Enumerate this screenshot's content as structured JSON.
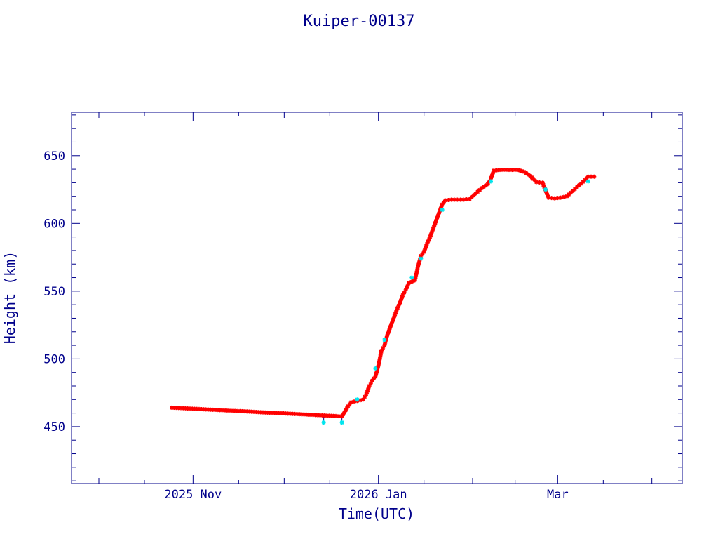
{
  "chart_data": {
    "type": "scatter",
    "title": "Kuiper-00137",
    "xlabel": "Time(UTC)",
    "ylabel": "Height (km)",
    "xlim": [
      "2025-09-22",
      "2026-04-11"
    ],
    "ylim": [
      408,
      682
    ],
    "x_tick_labels": [
      {
        "date": "2025-11-01",
        "label": "2025 Nov"
      },
      {
        "date": "2026-01-01",
        "label": "2026 Jan"
      },
      {
        "date": "2026-03-01",
        "label": "Mar"
      }
    ],
    "y_ticks": [
      450,
      500,
      550,
      600,
      650
    ],
    "grid": false,
    "colors": {
      "axis": "#00008b",
      "primary_marker": "#ff0000",
      "secondary_marker": "#00e5ee",
      "connector_line": "#00008b"
    },
    "series": [
      {
        "marker": "star",
        "color": "#ff0000",
        "points": [
          [
            "2025-10-25",
            464.0
          ],
          [
            "2025-10-28",
            463.7
          ],
          [
            "2025-10-31",
            463.3
          ],
          [
            "2025-11-03",
            463.0
          ],
          [
            "2025-11-06",
            462.6
          ],
          [
            "2025-11-09",
            462.3
          ],
          [
            "2025-11-12",
            461.9
          ],
          [
            "2025-11-15",
            461.6
          ],
          [
            "2025-11-18",
            461.3
          ],
          [
            "2025-11-21",
            460.9
          ],
          [
            "2025-11-24",
            460.5
          ],
          [
            "2025-11-27",
            460.2
          ],
          [
            "2025-11-30",
            459.9
          ],
          [
            "2025-12-03",
            459.5
          ],
          [
            "2025-12-06",
            459.2
          ],
          [
            "2025-12-09",
            458.8
          ],
          [
            "2025-12-12",
            458.5
          ],
          [
            "2025-12-15",
            458.1
          ],
          [
            "2025-12-18",
            457.8
          ],
          [
            "2025-12-20",
            457.6
          ],
          [
            "2025-12-22",
            465.0
          ],
          [
            "2025-12-23",
            468.0
          ],
          [
            "2025-12-25",
            469.0
          ],
          [
            "2025-12-27",
            470.0
          ],
          [
            "2025-12-28",
            474.0
          ],
          [
            "2025-12-29",
            480.0
          ],
          [
            "2025-12-30",
            484.0
          ],
          [
            "2025-12-31",
            487.0
          ],
          [
            "2026-01-01",
            495.0
          ],
          [
            "2026-01-02",
            506.0
          ],
          [
            "2026-01-03",
            510.0
          ],
          [
            "2026-01-04",
            518.0
          ],
          [
            "2026-01-05",
            524.0
          ],
          [
            "2026-01-06",
            530.0
          ],
          [
            "2026-01-07",
            536.0
          ],
          [
            "2026-01-08",
            541.0
          ],
          [
            "2026-01-09",
            547.0
          ],
          [
            "2026-01-10",
            551.0
          ],
          [
            "2026-01-11",
            556.0
          ],
          [
            "2026-01-13",
            558.0
          ],
          [
            "2026-01-14",
            568.0
          ],
          [
            "2026-01-15",
            576.0
          ],
          [
            "2026-01-16",
            579.0
          ],
          [
            "2026-01-17",
            585.0
          ],
          [
            "2026-01-18",
            590.0
          ],
          [
            "2026-01-19",
            596.0
          ],
          [
            "2026-01-20",
            602.0
          ],
          [
            "2026-01-21",
            608.0
          ],
          [
            "2026-01-22",
            614.0
          ],
          [
            "2026-01-23",
            617.0
          ],
          [
            "2026-01-25",
            617.5
          ],
          [
            "2026-01-27",
            617.5
          ],
          [
            "2026-01-29",
            617.5
          ],
          [
            "2026-01-31",
            618.0
          ],
          [
            "2026-02-02",
            622.0
          ],
          [
            "2026-02-04",
            626.0
          ],
          [
            "2026-02-06",
            629.0
          ],
          [
            "2026-02-07",
            633.0
          ],
          [
            "2026-02-08",
            639.0
          ],
          [
            "2026-02-10",
            639.5
          ],
          [
            "2026-02-12",
            639.5
          ],
          [
            "2026-02-14",
            639.5
          ],
          [
            "2026-02-16",
            639.5
          ],
          [
            "2026-02-18",
            638.0
          ],
          [
            "2026-02-20",
            635.0
          ],
          [
            "2026-02-22",
            630.5
          ],
          [
            "2026-02-24",
            630.0
          ],
          [
            "2026-02-26",
            619.0
          ],
          [
            "2026-02-28",
            618.5
          ],
          [
            "2026-03-02",
            619.0
          ],
          [
            "2026-03-04",
            620.0
          ],
          [
            "2026-03-06",
            624.0
          ],
          [
            "2026-03-08",
            628.0
          ],
          [
            "2026-03-10",
            632.0
          ],
          [
            "2026-03-11",
            634.5
          ],
          [
            "2026-03-13",
            634.5
          ]
        ]
      },
      {
        "marker": "star",
        "color": "#00e5ee",
        "points": [
          [
            "2025-12-14",
            453.0
          ],
          [
            "2025-12-20",
            453.0
          ],
          [
            "2025-12-25",
            470.0
          ],
          [
            "2025-12-31",
            493.0
          ],
          [
            "2026-01-03",
            514.0
          ],
          [
            "2026-01-12",
            560.0
          ],
          [
            "2026-01-15",
            574.0
          ],
          [
            "2026-01-22",
            610.0
          ],
          [
            "2026-02-07",
            631.0
          ],
          [
            "2026-02-25",
            625.0
          ],
          [
            "2026-03-11",
            631.0
          ]
        ]
      }
    ]
  }
}
